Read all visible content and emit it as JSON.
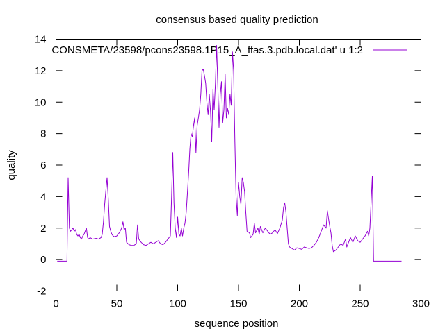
{
  "chart_data": {
    "type": "line",
    "title": "consensus based quality prediction",
    "xlabel": "sequence position",
    "ylabel": "quality",
    "xlim": [
      0,
      300
    ],
    "ylim": [
      -2,
      14
    ],
    "xticks": [
      0,
      50,
      100,
      150,
      200,
      250,
      300
    ],
    "yticks": [
      -2,
      0,
      2,
      4,
      6,
      8,
      10,
      12,
      14
    ],
    "grid": false,
    "legend_position": "top-right",
    "series": [
      {
        "name": "CONSMETA/23598/pcons23598.1P15_A_ffas.3.pdb.local.dat' u 1:2",
        "color": "#9400d3",
        "points": [
          [
            1,
            -0.1
          ],
          [
            9,
            -0.1
          ],
          [
            10,
            5.2
          ],
          [
            11,
            2.0
          ],
          [
            12,
            1.8
          ],
          [
            13,
            1.9
          ],
          [
            14,
            2.0
          ],
          [
            15,
            1.8
          ],
          [
            16,
            1.9
          ],
          [
            17,
            1.6
          ],
          [
            18,
            1.5
          ],
          [
            19,
            1.6
          ],
          [
            20,
            1.4
          ],
          [
            21,
            1.3
          ],
          [
            22,
            1.5
          ],
          [
            23,
            1.6
          ],
          [
            24,
            1.8
          ],
          [
            25,
            2.0
          ],
          [
            26,
            1.4
          ],
          [
            27,
            1.3
          ],
          [
            28,
            1.4
          ],
          [
            30,
            1.3
          ],
          [
            33,
            1.35
          ],
          [
            35,
            1.3
          ],
          [
            37,
            1.4
          ],
          [
            38,
            1.6
          ],
          [
            39,
            2.4
          ],
          [
            40,
            3.5
          ],
          [
            41,
            4.4
          ],
          [
            42,
            5.2
          ],
          [
            43,
            3.8
          ],
          [
            44,
            2.1
          ],
          [
            45,
            1.8
          ],
          [
            46,
            1.6
          ],
          [
            47,
            1.5
          ],
          [
            48,
            1.45
          ],
          [
            50,
            1.5
          ],
          [
            52,
            1.7
          ],
          [
            54,
            2.0
          ],
          [
            55,
            2.4
          ],
          [
            56,
            1.9
          ],
          [
            57,
            2.0
          ],
          [
            58,
            1.1
          ],
          [
            60,
            0.95
          ],
          [
            62,
            0.9
          ],
          [
            64,
            0.9
          ],
          [
            66,
            1.0
          ],
          [
            67,
            2.2
          ],
          [
            68,
            1.3
          ],
          [
            70,
            1.1
          ],
          [
            72,
            0.95
          ],
          [
            74,
            0.9
          ],
          [
            76,
            1.0
          ],
          [
            78,
            1.1
          ],
          [
            80,
            1.0
          ],
          [
            82,
            1.1
          ],
          [
            84,
            1.2
          ],
          [
            86,
            1.0
          ],
          [
            88,
            0.95
          ],
          [
            90,
            1.1
          ],
          [
            92,
            1.3
          ],
          [
            94,
            1.5
          ],
          [
            95,
            4.0
          ],
          [
            96,
            6.8
          ],
          [
            97,
            3.6
          ],
          [
            98,
            2.0
          ],
          [
            99,
            1.4
          ],
          [
            100,
            2.7
          ],
          [
            101,
            1.6
          ],
          [
            102,
            1.5
          ],
          [
            103,
            2.0
          ],
          [
            104,
            1.5
          ],
          [
            105,
            2.0
          ],
          [
            106,
            2.3
          ],
          [
            107,
            3.0
          ],
          [
            108,
            4.2
          ],
          [
            109,
            5.5
          ],
          [
            110,
            7.0
          ],
          [
            111,
            8.0
          ],
          [
            112,
            7.8
          ],
          [
            113,
            8.5
          ],
          [
            114,
            9.0
          ],
          [
            115,
            6.8
          ],
          [
            116,
            8.5
          ],
          [
            117,
            9.0
          ],
          [
            118,
            9.5
          ],
          [
            119,
            10.5
          ],
          [
            120,
            12.0
          ],
          [
            121,
            12.1
          ],
          [
            122,
            11.7
          ],
          [
            123,
            11.2
          ],
          [
            124,
            10.0
          ],
          [
            125,
            9.2
          ],
          [
            126,
            10.5
          ],
          [
            127,
            9.4
          ],
          [
            128,
            7.5
          ],
          [
            129,
            10.8
          ],
          [
            130,
            9.5
          ],
          [
            131,
            11.2
          ],
          [
            132,
            13.6
          ],
          [
            133,
            11.0
          ],
          [
            134,
            8.4
          ],
          [
            135,
            10.5
          ],
          [
            136,
            11.3
          ],
          [
            137,
            8.7
          ],
          [
            138,
            9.5
          ],
          [
            139,
            11.8
          ],
          [
            140,
            9.0
          ],
          [
            141,
            9.6
          ],
          [
            142,
            9.2
          ],
          [
            143,
            10.5
          ],
          [
            144,
            9.8
          ],
          [
            145,
            13.2
          ],
          [
            146,
            12.0
          ],
          [
            147,
            7.5
          ],
          [
            148,
            4.0
          ],
          [
            149,
            2.8
          ],
          [
            150,
            4.9
          ],
          [
            151,
            4.0
          ],
          [
            152,
            3.5
          ],
          [
            153,
            5.2
          ],
          [
            154,
            4.9
          ],
          [
            155,
            4.3
          ],
          [
            156,
            3.0
          ],
          [
            157,
            1.8
          ],
          [
            159,
            1.7
          ],
          [
            160,
            1.4
          ],
          [
            162,
            1.6
          ],
          [
            163,
            2.3
          ],
          [
            164,
            1.7
          ],
          [
            166,
            2.0
          ],
          [
            167,
            1.6
          ],
          [
            168,
            2.1
          ],
          [
            170,
            1.7
          ],
          [
            172,
            2.0
          ],
          [
            174,
            1.8
          ],
          [
            176,
            1.6
          ],
          [
            178,
            1.7
          ],
          [
            180,
            1.9
          ],
          [
            182,
            1.65
          ],
          [
            184,
            2.0
          ],
          [
            186,
            2.5
          ],
          [
            187,
            3.3
          ],
          [
            188,
            3.6
          ],
          [
            189,
            3.0
          ],
          [
            190,
            2.0
          ],
          [
            191,
            1.0
          ],
          [
            192,
            0.8
          ],
          [
            194,
            0.7
          ],
          [
            196,
            0.6
          ],
          [
            198,
            0.75
          ],
          [
            200,
            0.7
          ],
          [
            202,
            0.65
          ],
          [
            204,
            0.8
          ],
          [
            206,
            0.75
          ],
          [
            208,
            0.7
          ],
          [
            210,
            0.75
          ],
          [
            212,
            0.9
          ],
          [
            214,
            1.1
          ],
          [
            216,
            1.4
          ],
          [
            218,
            1.8
          ],
          [
            220,
            2.2
          ],
          [
            222,
            2.0
          ],
          [
            223,
            3.1
          ],
          [
            224,
            2.6
          ],
          [
            225,
            2.1
          ],
          [
            226,
            1.7
          ],
          [
            227,
            0.9
          ],
          [
            228,
            0.5
          ],
          [
            230,
            0.6
          ],
          [
            232,
            0.8
          ],
          [
            234,
            1.0
          ],
          [
            236,
            0.9
          ],
          [
            238,
            1.3
          ],
          [
            239,
            0.8
          ],
          [
            240,
            1.0
          ],
          [
            242,
            1.4
          ],
          [
            244,
            1.1
          ],
          [
            246,
            1.5
          ],
          [
            248,
            1.2
          ],
          [
            250,
            1.1
          ],
          [
            252,
            1.3
          ],
          [
            254,
            1.5
          ],
          [
            256,
            1.8
          ],
          [
            257,
            1.5
          ],
          [
            258,
            2.0
          ],
          [
            260,
            5.3
          ],
          [
            261,
            -0.1
          ],
          [
            270,
            -0.1
          ],
          [
            284,
            -0.1
          ]
        ]
      }
    ]
  }
}
